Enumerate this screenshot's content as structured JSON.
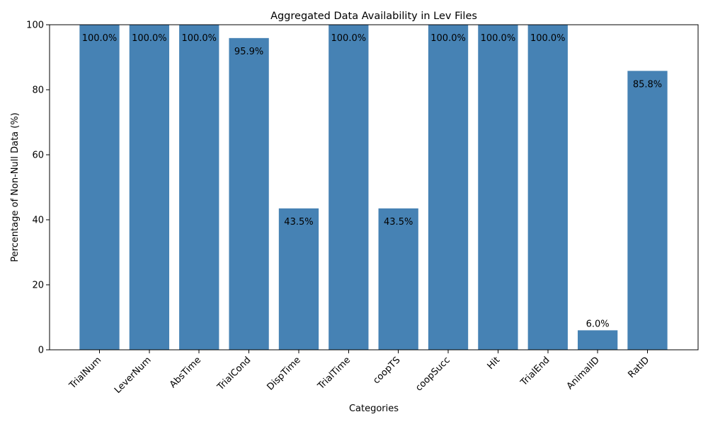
{
  "chart_data": {
    "type": "bar",
    "title": "Aggregated Data Availability in Lev Files",
    "xlabel": "Categories",
    "ylabel": "Percentage of Non-Null Data (%)",
    "categories": [
      "TrialNum",
      "LeverNum",
      "AbsTime",
      "TrialCond",
      "DispTime",
      "TrialTime",
      "coopTS",
      "coopSucc",
      "Hit",
      "TrialEnd",
      "AnimalID",
      "RatID"
    ],
    "values": [
      100.0,
      100.0,
      100.0,
      95.9,
      43.5,
      100.0,
      43.5,
      100.0,
      100.0,
      100.0,
      6.0,
      85.8
    ],
    "data_labels": [
      "100.0%",
      "100.0%",
      "100.0%",
      "95.9%",
      "43.5%",
      "100.0%",
      "43.5%",
      "100.0%",
      "100.0%",
      "100.0%",
      "6.0%",
      "85.8%"
    ],
    "ylim": [
      0,
      100
    ],
    "yticks": [
      0,
      20,
      40,
      60,
      80,
      100
    ],
    "bar_color": "#4682b4",
    "grid": false,
    "legend": null
  }
}
